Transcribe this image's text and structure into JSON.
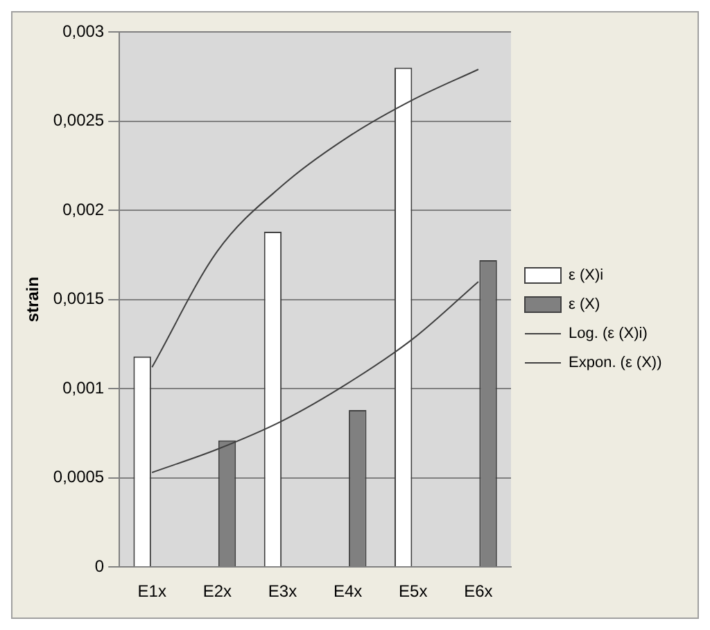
{
  "chart_data": {
    "type": "bar",
    "ylabel": "strain",
    "categories": [
      "E1x",
      "E2x",
      "E3x",
      "E4x",
      "E5x",
      "E6x"
    ],
    "series": [
      {
        "name": "ε (X)i",
        "color": "#ffffff",
        "values": [
          0.00118,
          null,
          0.00188,
          null,
          0.0028,
          null
        ]
      },
      {
        "name": "ε (X)",
        "color": "#808080",
        "values": [
          null,
          0.00071,
          null,
          0.00088,
          null,
          0.00172
        ]
      },
      {
        "name": "Log. (ε (X)i)",
        "type": "line",
        "color": "#404040",
        "values": [
          0.00112,
          0.00177,
          0.00214,
          0.00241,
          0.00262,
          0.00279
        ]
      },
      {
        "name": "Expon. (ε (X))",
        "type": "line",
        "color": "#404040",
        "values": [
          0.00053,
          0.00066,
          0.00082,
          0.00103,
          0.00128,
          0.0016
        ]
      }
    ],
    "ylim": [
      0,
      0.003
    ],
    "yticks": [
      {
        "value": 0,
        "label": "0"
      },
      {
        "value": 0.0005,
        "label": "0,0005"
      },
      {
        "value": 0.001,
        "label": "0,001"
      },
      {
        "value": 0.0015,
        "label": "0,0015"
      },
      {
        "value": 0.002,
        "label": "0,002"
      },
      {
        "value": 0.0025,
        "label": "0,0025"
      },
      {
        "value": 0.003,
        "label": "0,003"
      }
    ],
    "grid": "y",
    "legend": "right",
    "marker": "none",
    "line_style": "solid"
  }
}
